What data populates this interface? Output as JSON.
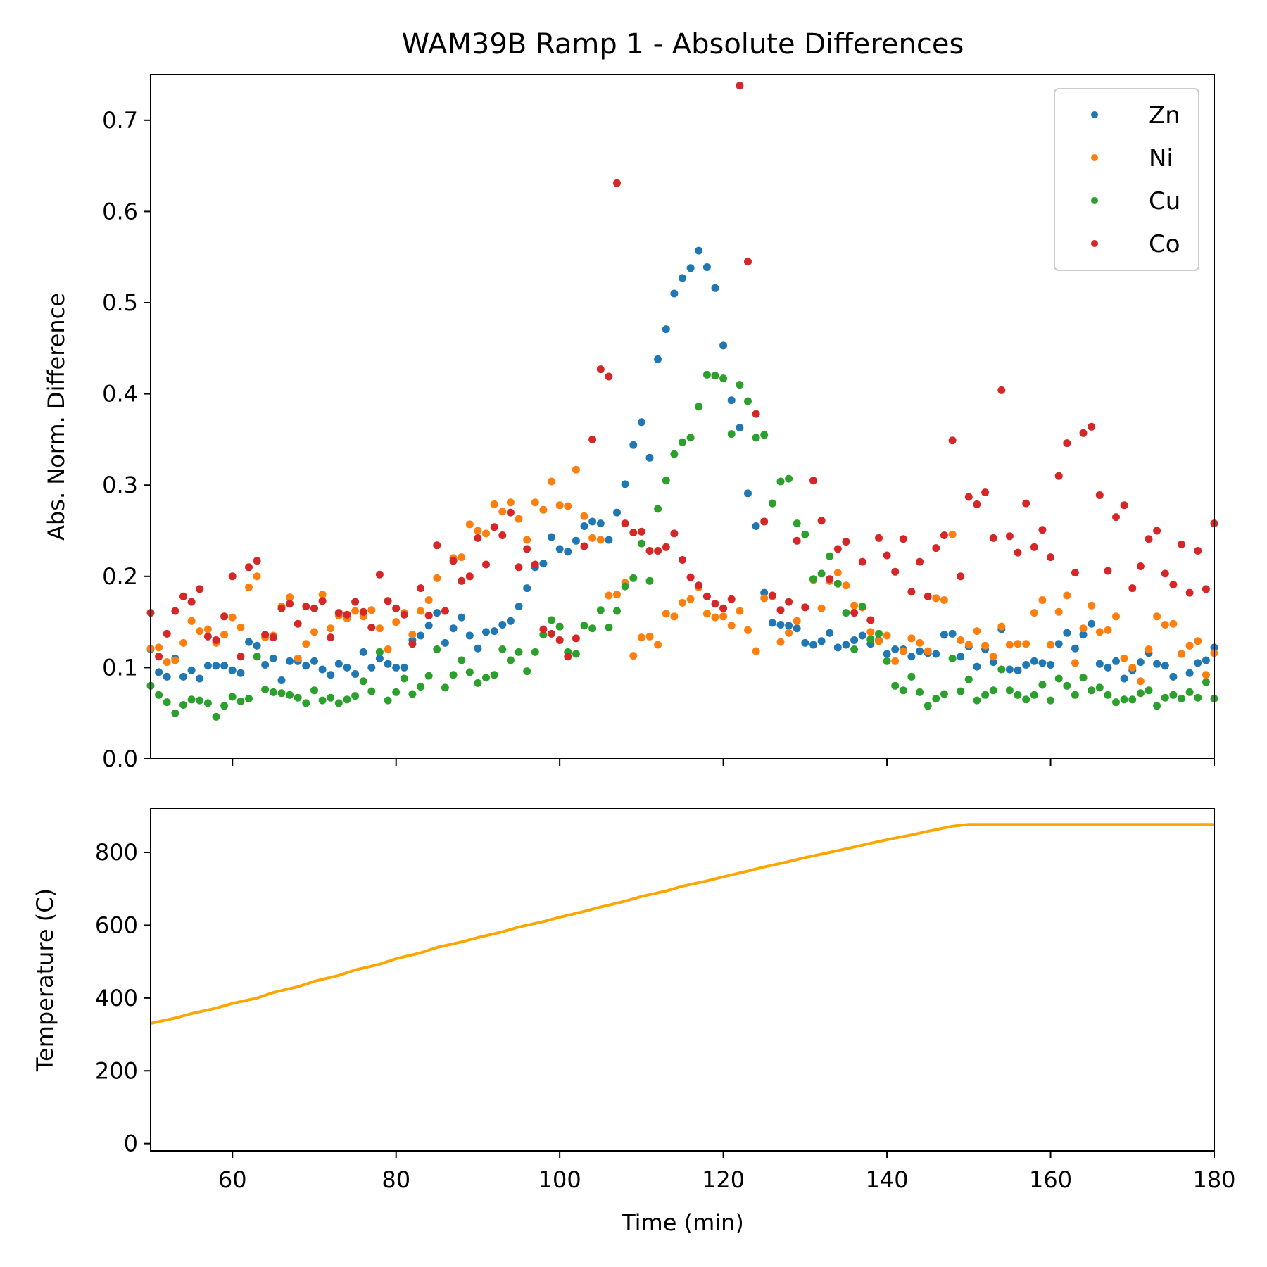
{
  "chart_data": [
    {
      "type": "scatter",
      "title": "WAM39B Ramp 1 - Absolute Differences",
      "xlabel": "",
      "ylabel": "Abs. Norm. Difference",
      "xlim": [
        50,
        180
      ],
      "ylim": [
        0,
        0.75
      ],
      "xticks": [
        60,
        80,
        100,
        120,
        140,
        160,
        180
      ],
      "yticks": [
        0.0,
        0.1,
        0.2,
        0.3,
        0.4,
        0.5,
        0.6,
        0.7
      ],
      "ytick_labels": [
        "0.0",
        "0.1",
        "0.2",
        "0.3",
        "0.4",
        "0.5",
        "0.6",
        "0.7"
      ],
      "legend_position": "top-right",
      "x": [
        50,
        51,
        52,
        53,
        54,
        55,
        56,
        57,
        58,
        59,
        60,
        61,
        62,
        63,
        64,
        65,
        66,
        67,
        68,
        69,
        70,
        71,
        72,
        73,
        74,
        75,
        76,
        77,
        78,
        79,
        80,
        81,
        82,
        83,
        84,
        85,
        86,
        87,
        88,
        89,
        90,
        91,
        92,
        93,
        94,
        95,
        96,
        97,
        98,
        99,
        100,
        101,
        102,
        103,
        104,
        105,
        106,
        107,
        108,
        109,
        110,
        111,
        112,
        113,
        114,
        115,
        116,
        117,
        118,
        119,
        120,
        121,
        122,
        123,
        124,
        125,
        126,
        127,
        128,
        129,
        130,
        131,
        132,
        133,
        134,
        135,
        136,
        137,
        138,
        139,
        140,
        141,
        142,
        143,
        144,
        145,
        146,
        147,
        148,
        149,
        150,
        151,
        152,
        153,
        154,
        155,
        156,
        157,
        158,
        159,
        160,
        161,
        162,
        163,
        164,
        165,
        166,
        167,
        168,
        169,
        170,
        171,
        172,
        173,
        174,
        175,
        176,
        177,
        178,
        179,
        180
      ],
      "series": [
        {
          "name": "Zn",
          "color": "#1f77b4",
          "values": [
            0.12,
            0.095,
            0.09,
            0.11,
            0.09,
            0.097,
            0.088,
            0.102,
            0.102,
            0.102,
            0.097,
            0.094,
            0.128,
            0.124,
            0.103,
            0.11,
            0.086,
            0.107,
            0.107,
            0.102,
            0.107,
            0.098,
            0.092,
            0.104,
            0.1,
            0.093,
            0.117,
            0.1,
            0.11,
            0.104,
            0.1,
            0.1,
            0.13,
            0.135,
            0.146,
            0.16,
            0.127,
            0.143,
            0.155,
            0.135,
            0.121,
            0.139,
            0.14,
            0.147,
            0.151,
            0.167,
            0.187,
            0.21,
            0.214,
            0.243,
            0.23,
            0.227,
            0.239,
            0.255,
            0.26,
            0.258,
            0.24,
            0.27,
            0.301,
            0.344,
            0.369,
            0.33,
            0.438,
            0.471,
            0.51,
            0.527,
            0.538,
            0.557,
            0.539,
            0.516,
            0.453,
            0.393,
            0.363,
            0.291,
            0.255,
            0.182,
            0.149,
            0.147,
            0.146,
            0.143,
            0.127,
            0.125,
            0.129,
            0.138,
            0.122,
            0.125,
            0.13,
            0.135,
            0.126,
            0.13,
            0.115,
            0.12,
            0.12,
            0.112,
            0.118,
            0.116,
            0.115,
            0.136,
            0.137,
            0.112,
            0.123,
            0.101,
            0.12,
            0.106,
            0.142,
            0.098,
            0.097,
            0.103,
            0.107,
            0.105,
            0.103,
            0.126,
            0.138,
            0.121,
            0.136,
            0.148,
            0.104,
            0.1,
            0.107,
            0.088,
            0.097,
            0.106,
            0.116,
            0.104,
            0.102,
            0.09,
            0.115,
            0.094,
            0.105,
            0.108,
            0.122
          ]
        },
        {
          "name": "Ni",
          "color": "#ff7f0e",
          "values": [
            0.121,
            0.122,
            0.106,
            0.108,
            0.127,
            0.151,
            0.14,
            0.142,
            0.127,
            0.136,
            0.155,
            0.144,
            0.188,
            0.2,
            0.133,
            0.135,
            0.167,
            0.177,
            0.11,
            0.126,
            0.139,
            0.18,
            0.143,
            0.157,
            0.154,
            0.162,
            0.156,
            0.163,
            0.143,
            0.12,
            0.15,
            0.16,
            0.136,
            0.162,
            0.174,
            0.198,
            0.162,
            0.22,
            0.221,
            0.257,
            0.25,
            0.247,
            0.279,
            0.271,
            0.281,
            0.263,
            0.24,
            0.281,
            0.273,
            0.304,
            0.278,
            0.277,
            0.317,
            0.266,
            0.242,
            0.24,
            0.179,
            0.18,
            0.193,
            0.113,
            0.133,
            0.134,
            0.125,
            0.159,
            0.156,
            0.171,
            0.175,
            0.188,
            0.159,
            0.155,
            0.156,
            0.146,
            0.162,
            0.141,
            0.118,
            0.176,
            0.178,
            0.128,
            0.138,
            0.151,
            0.166,
            0.196,
            0.165,
            0.195,
            0.204,
            0.19,
            0.168,
            0.166,
            0.139,
            0.129,
            0.135,
            0.107,
            0.118,
            0.132,
            0.127,
            0.118,
            0.176,
            0.174,
            0.246,
            0.13,
            0.125,
            0.14,
            0.124,
            0.112,
            0.145,
            0.125,
            0.126,
            0.126,
            0.16,
            0.174,
            0.125,
            0.161,
            0.179,
            0.105,
            0.143,
            0.168,
            0.139,
            0.141,
            0.156,
            0.11,
            0.1,
            0.085,
            0.12,
            0.156,
            0.147,
            0.148,
            0.115,
            0.124,
            0.129,
            0.092,
            0.116
          ]
        },
        {
          "name": "Cu",
          "color": "#2ca02c",
          "values": [
            0.08,
            0.07,
            0.062,
            0.05,
            0.059,
            0.065,
            0.064,
            0.061,
            0.046,
            0.058,
            0.068,
            0.063,
            0.066,
            0.112,
            0.076,
            0.073,
            0.072,
            0.07,
            0.067,
            0.061,
            0.075,
            0.064,
            0.067,
            0.061,
            0.065,
            0.069,
            0.085,
            0.074,
            0.117,
            0.064,
            0.073,
            0.088,
            0.071,
            0.079,
            0.091,
            0.12,
            0.078,
            0.092,
            0.108,
            0.095,
            0.083,
            0.089,
            0.092,
            0.12,
            0.108,
            0.117,
            0.096,
            0.117,
            0.136,
            0.152,
            0.145,
            0.117,
            0.115,
            0.146,
            0.143,
            0.163,
            0.144,
            0.162,
            0.189,
            0.198,
            0.236,
            0.195,
            0.274,
            0.305,
            0.334,
            0.347,
            0.352,
            0.386,
            0.421,
            0.42,
            0.417,
            0.356,
            0.41,
            0.392,
            0.352,
            0.355,
            0.28,
            0.304,
            0.307,
            0.258,
            0.246,
            0.197,
            0.203,
            0.222,
            0.192,
            0.16,
            0.12,
            0.167,
            0.131,
            0.137,
            0.107,
            0.08,
            0.075,
            0.09,
            0.073,
            0.058,
            0.066,
            0.071,
            0.11,
            0.074,
            0.087,
            0.064,
            0.07,
            0.075,
            0.098,
            0.075,
            0.07,
            0.065,
            0.07,
            0.081,
            0.064,
            0.088,
            0.08,
            0.07,
            0.089,
            0.075,
            0.078,
            0.07,
            0.062,
            0.065,
            0.065,
            0.072,
            0.075,
            0.058,
            0.067,
            0.07,
            0.066,
            0.073,
            0.067,
            0.084,
            0.066
          ]
        },
        {
          "name": "Co",
          "color": "#d62728",
          "values": [
            0.16,
            0.112,
            0.137,
            0.162,
            0.178,
            0.172,
            0.186,
            0.134,
            0.13,
            0.156,
            0.2,
            0.112,
            0.21,
            0.217,
            0.136,
            0.133,
            0.165,
            0.17,
            0.148,
            0.167,
            0.165,
            0.173,
            0.133,
            0.16,
            0.158,
            0.172,
            0.161,
            0.144,
            0.202,
            0.173,
            0.165,
            0.158,
            0.126,
            0.187,
            0.157,
            0.234,
            0.162,
            0.217,
            0.195,
            0.2,
            0.242,
            0.213,
            0.254,
            0.245,
            0.27,
            0.21,
            0.23,
            0.213,
            0.142,
            0.137,
            0.13,
            0.112,
            0.132,
            0.233,
            0.35,
            0.427,
            0.419,
            0.631,
            0.258,
            0.248,
            0.249,
            0.228,
            0.228,
            0.232,
            0.247,
            0.218,
            0.199,
            0.19,
            0.178,
            0.17,
            0.165,
            0.175,
            0.738,
            0.545,
            0.378,
            0.26,
            0.179,
            0.163,
            0.172,
            0.239,
            0.166,
            0.305,
            0.261,
            0.197,
            0.23,
            0.238,
            0.16,
            0.216,
            0.152,
            0.242,
            0.223,
            0.205,
            0.241,
            0.183,
            0.216,
            0.178,
            0.231,
            0.245,
            0.349,
            0.2,
            0.287,
            0.279,
            0.292,
            0.242,
            0.404,
            0.244,
            0.226,
            0.28,
            0.232,
            0.251,
            0.221,
            0.31,
            0.346,
            0.204,
            0.357,
            0.364,
            0.289,
            0.206,
            0.265,
            0.278,
            0.187,
            0.211,
            0.241,
            0.25,
            0.203,
            0.191,
            0.235,
            0.182,
            0.228,
            0.186,
            0.258
          ]
        }
      ]
    },
    {
      "type": "line",
      "title": "",
      "xlabel": "Time (min)",
      "ylabel": "Temperature (C)",
      "xlim": [
        50,
        180
      ],
      "ylim": [
        -20,
        920
      ],
      "xticks": [
        60,
        80,
        100,
        120,
        140,
        160,
        180
      ],
      "yticks": [
        0,
        200,
        400,
        600,
        800
      ],
      "x": [
        50,
        53,
        55,
        58,
        60,
        63,
        65,
        68,
        70,
        73,
        75,
        78,
        80,
        83,
        85,
        88,
        90,
        93,
        95,
        98,
        100,
        103,
        105,
        108,
        110,
        113,
        115,
        118,
        120,
        123,
        125,
        128,
        130,
        133,
        135,
        138,
        140,
        143,
        145,
        148,
        150,
        155,
        160,
        165,
        170,
        175,
        180
      ],
      "series": [
        {
          "name": "",
          "color": "#ffa500",
          "values": [
            330,
            345,
            357,
            372,
            385,
            400,
            415,
            431,
            446,
            462,
            477,
            493,
            508,
            524,
            539,
            554,
            566,
            582,
            595,
            610,
            622,
            638,
            650,
            666,
            679,
            694,
            707,
            722,
            733,
            749,
            760,
            775,
            786,
            800,
            810,
            825,
            835,
            848,
            858,
            872,
            877,
            877,
            877,
            877,
            877,
            877,
            877
          ]
        }
      ]
    }
  ]
}
